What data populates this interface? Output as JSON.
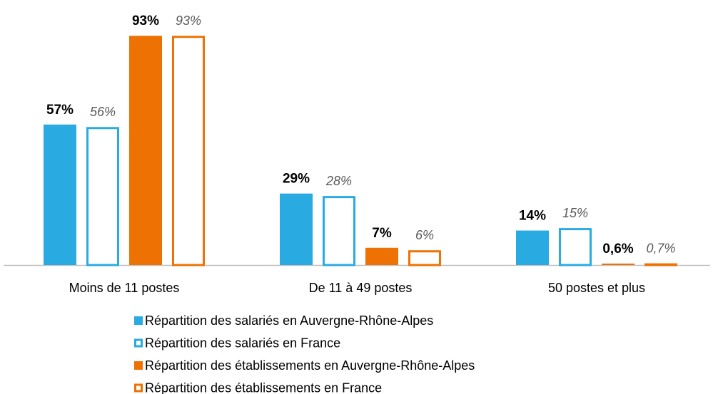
{
  "chart_data": {
    "type": "bar",
    "categories": [
      "Moins de 11 postes",
      "De 11 à 49 postes",
      "50 postes et plus"
    ],
    "series": [
      {
        "name": "Répartition des salariés en Auvergne-Rhône-Alpes",
        "color": "#29abe2",
        "filled": true,
        "values": [
          57,
          29,
          14
        ],
        "value_labels": [
          "57%",
          "29%",
          "14%"
        ]
      },
      {
        "name": "Répartition des salariés en France",
        "color": "#29abe2",
        "filled": false,
        "values": [
          56,
          28,
          15
        ],
        "value_labels": [
          "56%",
          "28%",
          "15%"
        ]
      },
      {
        "name": "Répartition des établissements en Auvergne-Rhône-Alpes",
        "color": "#ee7203",
        "filled": true,
        "values": [
          93,
          7,
          0.6
        ],
        "value_labels": [
          "93%",
          "7%",
          "0,6%"
        ]
      },
      {
        "name": "Répartition des établissements en France",
        "color": "#ee7203",
        "filled": false,
        "values": [
          93,
          6,
          0.7
        ],
        "value_labels": [
          "93%",
          "6%",
          "0,7%"
        ]
      }
    ]
  }
}
